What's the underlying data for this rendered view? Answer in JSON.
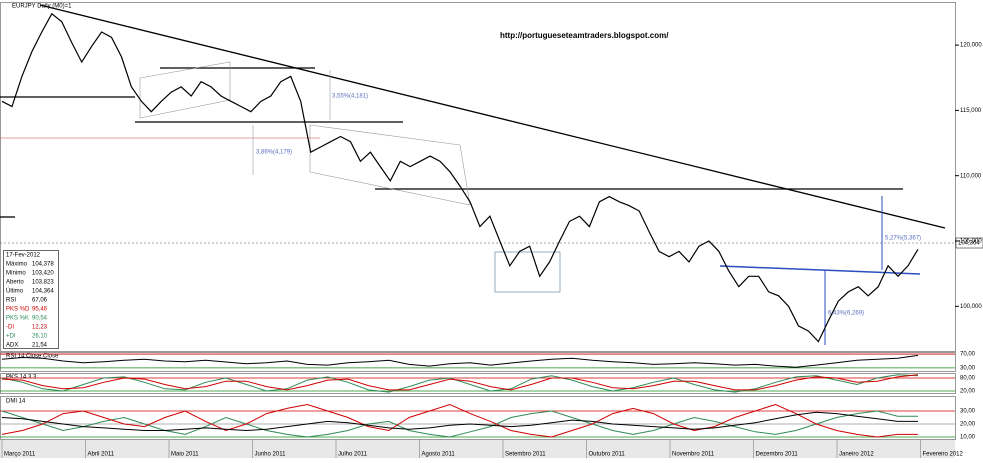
{
  "chart_data": [
    {
      "type": "line",
      "title": "EURJPY Daily (M0)=1",
      "color": "#000000",
      "values": [
        115.7,
        115.3,
        117.6,
        119.5,
        121,
        122.4,
        121.8,
        120.2,
        118.7,
        119.9,
        121,
        120.6,
        119.1,
        116.8,
        115.7,
        114.9,
        115.7,
        116.4,
        116.8,
        116.1,
        117.2,
        116.8,
        116.1,
        115.7,
        115.3,
        114.9,
        115.7,
        116.1,
        117.2,
        117.6,
        115.7,
        111.8,
        112.2,
        112.6,
        113,
        112.6,
        111.1,
        111.8,
        110.7,
        109.6,
        111.1,
        110.7,
        111.1,
        111.5,
        111.1,
        110.3,
        109.2,
        108,
        106.1,
        106.9,
        105,
        103.1,
        104.2,
        104.6,
        102.3,
        103.4,
        105,
        106.5,
        106.9,
        106.1,
        108,
        108.4,
        108,
        107.7,
        107.3,
        105.7,
        104.2,
        103.8,
        104.2,
        103.4,
        104.6,
        105,
        104.2,
        102.7,
        101.5,
        102.3,
        102.3,
        101.1,
        100.8,
        100,
        98.5,
        98.1,
        97.3,
        98.9,
        100.4,
        101.1,
        101.5,
        100.8,
        101.5,
        103.1,
        102.3,
        103.1,
        104.364
      ],
      "ylim": [
        96.5,
        123.3
      ],
      "yticks": [
        {
          "value": 100,
          "label": "100,000"
        },
        {
          "value": 105,
          "label": "105,000"
        },
        {
          "value": 110,
          "label": "110,000"
        },
        {
          "value": 115,
          "label": "115,000"
        },
        {
          "value": 120,
          "label": "120,000"
        }
      ],
      "last_label": "104,364",
      "annotations": [
        "http://portugueseteamtraders.blogspot.com/",
        "3,55%(4,181)",
        "3,86%(4,179)",
        "6,43%(6,269)",
        "5,27%(5,367)"
      ],
      "x_labels": [
        "Março 2011",
        "Abril 2011",
        "Maio 2011",
        "Junho 2011",
        "Julho 2011",
        "Agosto 2011",
        "Setembro 2011",
        "Outubro 2011",
        "Novembro 2011",
        "Dezembro 2011",
        "Janeiro 2012",
        "Fevereiro 2012"
      ]
    },
    {
      "type": "line",
      "title": "RSI 14 Close Close",
      "ylim": [
        18,
        76
      ],
      "yticks": [
        {
          "value": 70,
          "label": "70,00"
        },
        {
          "value": 30,
          "label": "30,00"
        }
      ],
      "series": [
        {
          "color": "#000000",
          "values": [
            55,
            60,
            58,
            50,
            45,
            48,
            52,
            55,
            50,
            48,
            52,
            47,
            42,
            45,
            50,
            40,
            38,
            45,
            48,
            52,
            40,
            35,
            42,
            45,
            38,
            44,
            50,
            55,
            58,
            52,
            48,
            45,
            40,
            42,
            45,
            42,
            38,
            40,
            35,
            32,
            38,
            45,
            52,
            55,
            58,
            66
          ]
        }
      ]
    },
    {
      "type": "line",
      "title": "PKS 14 3 3",
      "ylim": [
        6,
        103
      ],
      "yticks": [
        {
          "value": 80,
          "label": "80,00"
        },
        {
          "value": 20,
          "label": "20,00"
        }
      ],
      "series": [
        {
          "color": "#2e8b57",
          "values": [
            80,
            60,
            30,
            20,
            50,
            80,
            85,
            60,
            30,
            25,
            60,
            80,
            50,
            20,
            30,
            70,
            85,
            60,
            25,
            15,
            40,
            70,
            80,
            50,
            20,
            30,
            75,
            90,
            70,
            40,
            20,
            35,
            60,
            80,
            50,
            25,
            15,
            30,
            60,
            85,
            90,
            70,
            50,
            80,
            95,
            90
          ]
        },
        {
          "color": "#d00000",
          "values": [
            75,
            70,
            45,
            30,
            35,
            60,
            80,
            75,
            50,
            30,
            40,
            65,
            65,
            40,
            25,
            45,
            70,
            75,
            45,
            25,
            25,
            50,
            75,
            65,
            40,
            25,
            50,
            80,
            80,
            60,
            35,
            30,
            45,
            65,
            65,
            45,
            25,
            25,
            45,
            70,
            85,
            80,
            60,
            65,
            85,
            95
          ]
        }
      ]
    },
    {
      "type": "line",
      "title": "DMI 14",
      "ylim": [
        7.7,
        41.5
      ],
      "yticks": [
        {
          "value": 30,
          "label": "30,00"
        },
        {
          "value": 20,
          "label": "20,00"
        },
        {
          "value": 10,
          "label": "10,00"
        }
      ],
      "series": [
        {
          "color": "#2e8b57",
          "values": [
            30,
            25,
            20,
            15,
            18,
            22,
            25,
            20,
            15,
            12,
            18,
            25,
            20,
            15,
            12,
            10,
            12,
            15,
            20,
            22,
            15,
            12,
            10,
            14,
            18,
            25,
            28,
            30,
            25,
            20,
            15,
            12,
            15,
            20,
            25,
            22,
            18,
            14,
            12,
            15,
            20,
            25,
            28,
            30,
            26,
            26
          ]
        },
        {
          "color": "#d00000",
          "values": [
            12,
            15,
            20,
            28,
            30,
            25,
            20,
            18,
            25,
            30,
            22,
            15,
            20,
            28,
            32,
            35,
            30,
            25,
            18,
            15,
            25,
            30,
            35,
            28,
            22,
            15,
            12,
            10,
            15,
            20,
            28,
            32,
            28,
            20,
            15,
            18,
            25,
            30,
            35,
            28,
            20,
            15,
            12,
            10,
            12,
            12
          ]
        },
        {
          "color": "#000000",
          "values": [
            25,
            24,
            22,
            20,
            18,
            17,
            16,
            15,
            15,
            16,
            17,
            16,
            15,
            16,
            18,
            20,
            22,
            21,
            19,
            17,
            16,
            17,
            19,
            20,
            19,
            18,
            19,
            21,
            23,
            22,
            20,
            19,
            18,
            17,
            16,
            17,
            19,
            21,
            24,
            27,
            29,
            28,
            26,
            24,
            22,
            22
          ]
        }
      ]
    }
  ],
  "info_panel": {
    "date": "17-Fev-2012",
    "rows": [
      [
        "Máximo",
        "104,378"
      ],
      [
        "Mínimo",
        "103,420"
      ],
      [
        "Aberto",
        "103,823"
      ],
      [
        "Último",
        "104,364"
      ],
      [
        "RSI",
        "67,06"
      ],
      [
        "PKS %D",
        "95,46"
      ],
      [
        "PKS %K",
        "90,54"
      ],
      [
        "-DI",
        "12,23"
      ],
      [
        "+DI",
        "26,10"
      ],
      [
        "ADX",
        "21,54"
      ]
    ]
  }
}
